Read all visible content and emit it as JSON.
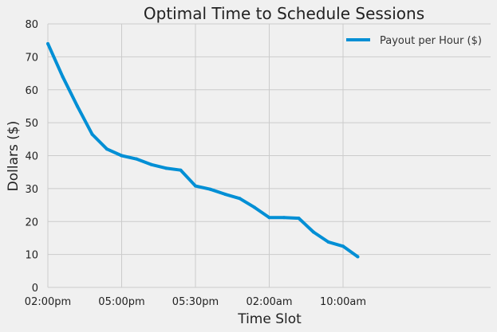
{
  "chart_data": {
    "type": "line",
    "title": "Optimal Time to Schedule Sessions",
    "xlabel": "Time Slot",
    "ylabel": "Dollars ($)",
    "ylim": [
      0,
      80
    ],
    "yticks": [
      "0",
      "10",
      "20",
      "30",
      "40",
      "50",
      "60",
      "70",
      "80"
    ],
    "xlim": [
      0,
      30
    ],
    "xticks": [
      {
        "pos": 0,
        "label": "02:00pm"
      },
      {
        "pos": 5,
        "label": "05:00pm"
      },
      {
        "pos": 10,
        "label": "05:30pm"
      },
      {
        "pos": 15,
        "label": "02:00am"
      },
      {
        "pos": 20,
        "label": "10:00am"
      }
    ],
    "grid": true,
    "legend_position": "top-right",
    "series": [
      {
        "name": "Payout per Hour ($)",
        "color": "#008fd5",
        "x": [
          0,
          1,
          2,
          3,
          4,
          5,
          6,
          7,
          8,
          9,
          10,
          11,
          12,
          13,
          14,
          15,
          16,
          17,
          18,
          19,
          20,
          21
        ],
        "values": [
          74,
          64,
          55,
          46.5,
          42,
          40,
          39,
          37.3,
          36.2,
          35.6,
          30.8,
          29.8,
          28.3,
          27,
          24.3,
          21.2,
          21.2,
          21,
          16.8,
          13.8,
          12.5,
          9.3
        ]
      }
    ]
  }
}
